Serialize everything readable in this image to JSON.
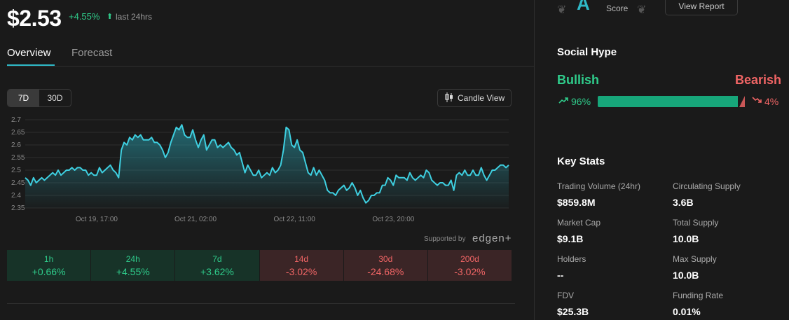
{
  "header": {
    "price": "$2.53",
    "change": "+4.55%",
    "change_period": "last 24hrs",
    "arrow_icon": "arrow-up-icon"
  },
  "tabs": [
    {
      "label": "Overview",
      "active": true
    },
    {
      "label": "Forecast",
      "active": false
    }
  ],
  "ranges": [
    {
      "label": "7D",
      "active": true
    },
    {
      "label": "30D",
      "active": false
    }
  ],
  "candle_view_label": "Candle View",
  "chart_data": {
    "type": "area",
    "y_ticks": [
      "2.7",
      "2.65",
      "2.6",
      "2.55",
      "2.5",
      "2.45",
      "2.4",
      "2.35"
    ],
    "ylim": [
      2.35,
      2.7
    ],
    "x_ticks": [
      "Oct 19, 17:00",
      "Oct 21, 02:00",
      "Oct 22, 11:00",
      "Oct 23, 20:00"
    ],
    "x_tick_index": [
      26,
      62,
      98,
      134
    ],
    "grid": "horizontal",
    "line_color": "#3ecfe0",
    "values": [
      2.47,
      2.46,
      2.44,
      2.47,
      2.45,
      2.46,
      2.47,
      2.46,
      2.47,
      2.48,
      2.49,
      2.48,
      2.5,
      2.48,
      2.49,
      2.5,
      2.5,
      2.51,
      2.5,
      2.51,
      2.51,
      2.5,
      2.5,
      2.48,
      2.49,
      2.48,
      2.48,
      2.51,
      2.49,
      2.5,
      2.51,
      2.52,
      2.5,
      2.49,
      2.47,
      2.58,
      2.61,
      2.6,
      2.63,
      2.62,
      2.64,
      2.63,
      2.64,
      2.62,
      2.62,
      2.62,
      2.63,
      2.61,
      2.61,
      2.6,
      2.58,
      2.55,
      2.57,
      2.61,
      2.64,
      2.67,
      2.66,
      2.68,
      2.64,
      2.63,
      2.63,
      2.66,
      2.62,
      2.59,
      2.62,
      2.64,
      2.58,
      2.6,
      2.62,
      2.62,
      2.59,
      2.6,
      2.59,
      2.6,
      2.61,
      2.59,
      2.58,
      2.56,
      2.57,
      2.53,
      2.49,
      2.52,
      2.5,
      2.48,
      2.48,
      2.5,
      2.47,
      2.48,
      2.49,
      2.48,
      2.51,
      2.49,
      2.5,
      2.52,
      2.58,
      2.67,
      2.66,
      2.6,
      2.59,
      2.62,
      2.58,
      2.57,
      2.53,
      2.49,
      2.48,
      2.51,
      2.48,
      2.5,
      2.48,
      2.46,
      2.42,
      2.41,
      2.41,
      2.4,
      2.42,
      2.43,
      2.44,
      2.42,
      2.43,
      2.45,
      2.43,
      2.4,
      2.42,
      2.39,
      2.37,
      2.38,
      2.4,
      2.4,
      2.41,
      2.41,
      2.44,
      2.44,
      2.47,
      2.46,
      2.44,
      2.48,
      2.47,
      2.47,
      2.47,
      2.46,
      2.49,
      2.47,
      2.46,
      2.47,
      2.48,
      2.47,
      2.5,
      2.49,
      2.46,
      2.45,
      2.44,
      2.45,
      2.45,
      2.44,
      2.44,
      2.46,
      2.42,
      2.48,
      2.49,
      2.48,
      2.5,
      2.48,
      2.48,
      2.5,
      2.48,
      2.48,
      2.51,
      2.48,
      2.46,
      2.48,
      2.5,
      2.5,
      2.51,
      2.52,
      2.52,
      2.51,
      2.52
    ]
  },
  "supported_by": "Supported by",
  "supported_brand": "edgen+",
  "periods": [
    {
      "label": "1h",
      "value": "+0.66%",
      "dir": "up"
    },
    {
      "label": "24h",
      "value": "+4.55%",
      "dir": "up"
    },
    {
      "label": "7d",
      "value": "+3.62%",
      "dir": "up"
    },
    {
      "label": "14d",
      "value": "-3.02%",
      "dir": "down"
    },
    {
      "label": "30d",
      "value": "-24.68%",
      "dir": "down"
    },
    {
      "label": "200d",
      "value": "-3.02%",
      "dir": "down"
    }
  ],
  "rating": {
    "grade": "A",
    "score_label": "Score",
    "report_label": "View Report"
  },
  "social_hype": {
    "title": "Social Hype",
    "bullish_label": "Bullish",
    "bearish_label": "Bearish",
    "bullish_pct": "96%",
    "bearish_pct": "4%",
    "bullish_fraction": 0.96
  },
  "key_stats": {
    "title": "Key Stats",
    "items": [
      {
        "label": "Trading Volume (24hr)",
        "value": "$859.8M"
      },
      {
        "label": "Circulating Supply",
        "value": "3.6B"
      },
      {
        "label": "Market Cap",
        "value": "$9.1B"
      },
      {
        "label": "Total Supply",
        "value": "10.0B"
      },
      {
        "label": "Holders",
        "value": "--"
      },
      {
        "label": "Max Supply",
        "value": "10.0B"
      },
      {
        "label": "FDV",
        "value": "$25.3B"
      },
      {
        "label": "Funding Rate",
        "value": "0.01%"
      }
    ]
  },
  "colors": {
    "up": "#2fcc8b",
    "down": "#f06565",
    "accent": "#2fb9c7"
  }
}
